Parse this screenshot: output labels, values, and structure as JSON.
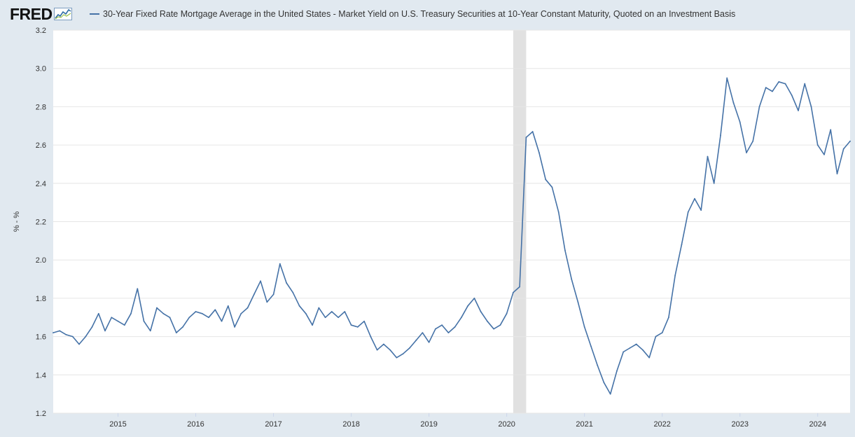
{
  "brand": {
    "logo_text": "FRED"
  },
  "chart_data": {
    "type": "line",
    "title": "",
    "xlabel": "",
    "ylabel": "% - %",
    "ylim": [
      1.2,
      3.2
    ],
    "yticks": [
      "1.2",
      "1.4",
      "1.6",
      "1.8",
      "2.0",
      "2.2",
      "2.4",
      "2.6",
      "2.8",
      "3.0",
      "3.2"
    ],
    "xticks": [
      "2015",
      "2016",
      "2017",
      "2018",
      "2019",
      "2020",
      "2021",
      "2022",
      "2023",
      "2024"
    ],
    "xlim": [
      "2014-03",
      "2024-06"
    ],
    "recession_shading": [
      "2020-02",
      "2020-04"
    ],
    "grid": "horizontal",
    "series": [
      {
        "name": "30-Year Fixed Rate Mortgage Average in the United States - Market Yield on U.S. Treasury Securities at 10-Year Constant Maturity, Quoted on an Investment Basis",
        "color": "#4572a7",
        "points": [
          [
            "2014-03",
            1.62
          ],
          [
            "2014-04",
            1.63
          ],
          [
            "2014-05",
            1.61
          ],
          [
            "2014-06",
            1.6
          ],
          [
            "2014-07",
            1.56
          ],
          [
            "2014-08",
            1.6
          ],
          [
            "2014-09",
            1.65
          ],
          [
            "2014-10",
            1.72
          ],
          [
            "2014-11",
            1.63
          ],
          [
            "2014-12",
            1.7
          ],
          [
            "2015-01",
            1.68
          ],
          [
            "2015-02",
            1.66
          ],
          [
            "2015-03",
            1.72
          ],
          [
            "2015-04",
            1.85
          ],
          [
            "2015-05",
            1.68
          ],
          [
            "2015-06",
            1.63
          ],
          [
            "2015-07",
            1.75
          ],
          [
            "2015-08",
            1.72
          ],
          [
            "2015-09",
            1.7
          ],
          [
            "2015-10",
            1.62
          ],
          [
            "2015-11",
            1.65
          ],
          [
            "2015-12",
            1.7
          ],
          [
            "2016-01",
            1.73
          ],
          [
            "2016-02",
            1.72
          ],
          [
            "2016-03",
            1.7
          ],
          [
            "2016-04",
            1.74
          ],
          [
            "2016-05",
            1.68
          ],
          [
            "2016-06",
            1.76
          ],
          [
            "2016-07",
            1.65
          ],
          [
            "2016-08",
            1.72
          ],
          [
            "2016-09",
            1.75
          ],
          [
            "2016-10",
            1.82
          ],
          [
            "2016-11",
            1.89
          ],
          [
            "2016-12",
            1.78
          ],
          [
            "2017-01",
            1.82
          ],
          [
            "2017-02",
            1.98
          ],
          [
            "2017-03",
            1.88
          ],
          [
            "2017-04",
            1.83
          ],
          [
            "2017-05",
            1.76
          ],
          [
            "2017-06",
            1.72
          ],
          [
            "2017-07",
            1.66
          ],
          [
            "2017-08",
            1.75
          ],
          [
            "2017-09",
            1.7
          ],
          [
            "2017-10",
            1.73
          ],
          [
            "2017-11",
            1.7
          ],
          [
            "2017-12",
            1.73
          ],
          [
            "2018-01",
            1.66
          ],
          [
            "2018-02",
            1.65
          ],
          [
            "2018-03",
            1.68
          ],
          [
            "2018-04",
            1.6
          ],
          [
            "2018-05",
            1.53
          ],
          [
            "2018-06",
            1.56
          ],
          [
            "2018-07",
            1.53
          ],
          [
            "2018-08",
            1.49
          ],
          [
            "2018-09",
            1.51
          ],
          [
            "2018-10",
            1.54
          ],
          [
            "2018-11",
            1.58
          ],
          [
            "2018-12",
            1.62
          ],
          [
            "2019-01",
            1.57
          ],
          [
            "2019-02",
            1.64
          ],
          [
            "2019-03",
            1.66
          ],
          [
            "2019-04",
            1.62
          ],
          [
            "2019-05",
            1.65
          ],
          [
            "2019-06",
            1.7
          ],
          [
            "2019-07",
            1.76
          ],
          [
            "2019-08",
            1.8
          ],
          [
            "2019-09",
            1.73
          ],
          [
            "2019-10",
            1.68
          ],
          [
            "2019-11",
            1.64
          ],
          [
            "2019-12",
            1.66
          ],
          [
            "2020-01",
            1.72
          ],
          [
            "2020-02",
            1.83
          ],
          [
            "2020-03",
            1.86
          ],
          [
            "2020-04",
            2.64
          ],
          [
            "2020-05",
            2.67
          ],
          [
            "2020-06",
            2.56
          ],
          [
            "2020-07",
            2.42
          ],
          [
            "2020-08",
            2.38
          ],
          [
            "2020-09",
            2.25
          ],
          [
            "2020-10",
            2.05
          ],
          [
            "2020-11",
            1.9
          ],
          [
            "2020-12",
            1.78
          ],
          [
            "2021-01",
            1.65
          ],
          [
            "2021-02",
            1.55
          ],
          [
            "2021-03",
            1.45
          ],
          [
            "2021-04",
            1.36
          ],
          [
            "2021-05",
            1.3
          ],
          [
            "2021-06",
            1.42
          ],
          [
            "2021-07",
            1.52
          ],
          [
            "2021-08",
            1.54
          ],
          [
            "2021-09",
            1.56
          ],
          [
            "2021-10",
            1.53
          ],
          [
            "2021-11",
            1.49
          ],
          [
            "2021-12",
            1.6
          ],
          [
            "2022-01",
            1.62
          ],
          [
            "2022-02",
            1.7
          ],
          [
            "2022-03",
            1.92
          ],
          [
            "2022-04",
            2.08
          ],
          [
            "2022-05",
            2.25
          ],
          [
            "2022-06",
            2.32
          ],
          [
            "2022-07",
            2.26
          ],
          [
            "2022-08",
            2.54
          ],
          [
            "2022-09",
            2.4
          ],
          [
            "2022-10",
            2.65
          ],
          [
            "2022-11",
            2.95
          ],
          [
            "2022-12",
            2.82
          ],
          [
            "2023-01",
            2.72
          ],
          [
            "2023-02",
            2.56
          ],
          [
            "2023-03",
            2.62
          ],
          [
            "2023-04",
            2.8
          ],
          [
            "2023-05",
            2.9
          ],
          [
            "2023-06",
            2.88
          ],
          [
            "2023-07",
            2.93
          ],
          [
            "2023-08",
            2.92
          ],
          [
            "2023-09",
            2.86
          ],
          [
            "2023-10",
            2.78
          ],
          [
            "2023-11",
            2.92
          ],
          [
            "2023-12",
            2.8
          ],
          [
            "2024-01",
            2.6
          ],
          [
            "2024-02",
            2.55
          ],
          [
            "2024-03",
            2.68
          ],
          [
            "2024-04",
            2.45
          ],
          [
            "2024-05",
            2.58
          ],
          [
            "2024-06",
            2.62
          ]
        ]
      }
    ]
  }
}
